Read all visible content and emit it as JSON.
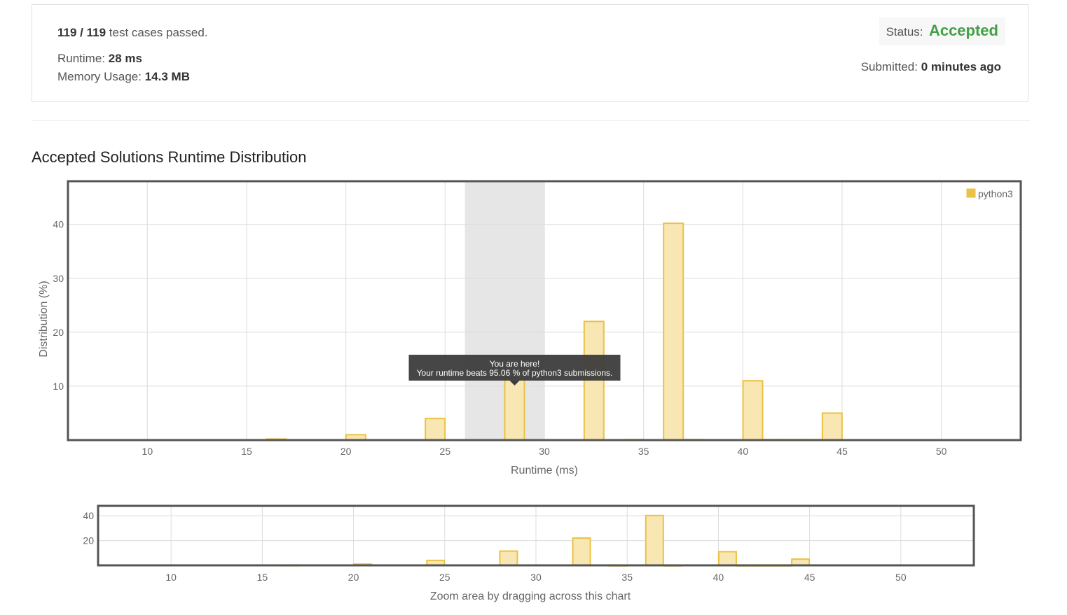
{
  "summary": {
    "cases_passed": "119 / 119",
    "cases_label": "test cases passed.",
    "runtime_label": "Runtime:",
    "runtime_value": "28 ms",
    "memory_label": "Memory Usage:",
    "memory_value": "14.3 MB",
    "status_label": "Status:",
    "status_value": "Accepted",
    "submitted_label": "Submitted:",
    "submitted_value": "0 minutes ago"
  },
  "section_title": "Accepted Solutions Runtime Distribution",
  "colors": {
    "bar_fill": "#f8e6b3",
    "bar_stroke": "#ebc245",
    "accepted": "#43a047",
    "highlight": "#e6e6e6",
    "tooltip_bg": "#3c3c3c"
  },
  "tooltip": {
    "line1": "You are here!",
    "line2": "Your runtime beats 95.06 % of python3 submissions."
  },
  "chart_data": [
    {
      "type": "bar",
      "title": "Accepted Solutions Runtime Distribution",
      "xlabel": "Runtime (ms)",
      "ylabel": "Distribution (%)",
      "xlim": [
        6,
        54
      ],
      "ylim": [
        0,
        48
      ],
      "xticks": [
        10,
        15,
        20,
        25,
        30,
        35,
        40,
        45,
        50
      ],
      "yticks": [
        10,
        20,
        30,
        40
      ],
      "grid": true,
      "legend": "top-right",
      "highlight_range": [
        26,
        30
      ],
      "series": [
        {
          "name": "python3",
          "bars": [
            {
              "x": 16.5,
              "value": 0.2
            },
            {
              "x": 20.5,
              "value": 1.0
            },
            {
              "x": 24.5,
              "value": 4.0
            },
            {
              "x": 28.5,
              "value": 11.5
            },
            {
              "x": 32.5,
              "value": 22.0
            },
            {
              "x": 34.5,
              "value": 0.1
            },
            {
              "x": 36.5,
              "value": 40.2
            },
            {
              "x": 37.5,
              "value": 0.1
            },
            {
              "x": 40.5,
              "value": 11.0
            },
            {
              "x": 41.5,
              "value": 0.1
            },
            {
              "x": 42.5,
              "value": 0.1
            },
            {
              "x": 43.5,
              "value": 0.1
            },
            {
              "x": 44.5,
              "value": 5.0
            }
          ]
        }
      ]
    },
    {
      "type": "bar",
      "xlabel": "Zoom area by dragging across this chart",
      "xlim": [
        6,
        54
      ],
      "ylim": [
        0,
        48
      ],
      "xticks": [
        10,
        15,
        20,
        25,
        30,
        35,
        40,
        45,
        50
      ],
      "yticks": [
        20,
        40
      ],
      "grid": true
    }
  ]
}
